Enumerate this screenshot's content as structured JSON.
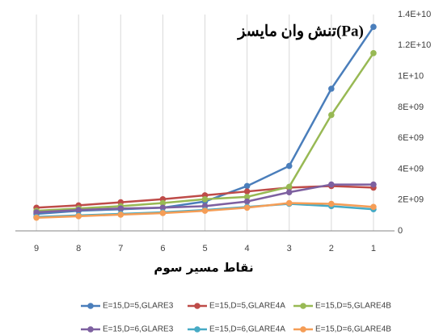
{
  "chart_data": {
    "type": "line",
    "title": "تنش وان مایسز(Pa)",
    "x_label": "نقاط مسیر سوم",
    "categories": [
      "9",
      "8",
      "7",
      "6",
      "5",
      "4",
      "3",
      "2",
      "1"
    ],
    "series": [
      {
        "name": "E=15,D=5,GLARE3",
        "color": "#4a7ebb",
        "values": [
          1100000000,
          1300000000,
          1400000000,
          1500000000,
          1900000000,
          2900000000,
          4200000000,
          9200000000,
          13200000000
        ]
      },
      {
        "name": "E=15,D=5,GLARE4A",
        "color": "#be4b48",
        "values": [
          1500000000,
          1650000000,
          1850000000,
          2050000000,
          2300000000,
          2550000000,
          2800000000,
          2900000000,
          2800000000
        ]
      },
      {
        "name": "E=15,D=5,GLARE4B",
        "color": "#98b954",
        "values": [
          1300000000,
          1450000000,
          1600000000,
          1800000000,
          2050000000,
          2200000000,
          2850000000,
          7500000000,
          11500000000
        ]
      },
      {
        "name": "E=15,D=6,GLARE3",
        "color": "#7d60a0",
        "values": [
          1200000000,
          1350000000,
          1450000000,
          1500000000,
          1600000000,
          1900000000,
          2500000000,
          3000000000,
          3000000000
        ]
      },
      {
        "name": "E=15,D=6,GLARE4A",
        "color": "#46aac5",
        "values": [
          900000000,
          1000000000,
          1100000000,
          1200000000,
          1350000000,
          1550000000,
          1750000000,
          1600000000,
          1400000000
        ]
      },
      {
        "name": "E=15,D=6,GLARE4B",
        "color": "#f59d56",
        "values": [
          850000000,
          950000000,
          1050000000,
          1150000000,
          1300000000,
          1500000000,
          1800000000,
          1750000000,
          1550000000
        ]
      }
    ],
    "ylim": [
      0,
      14000000000
    ],
    "yticks": [
      0,
      {
        "value": 2000000000,
        "label": "2E+09"
      },
      {
        "value": 4000000000,
        "label": "4E+09"
      },
      {
        "value": 6000000000,
        "label": "6E+09"
      },
      {
        "value": 8000000000,
        "label": "8E+09"
      },
      {
        "value": 10000000000,
        "label": "1E+10"
      },
      {
        "value": 12000000000,
        "label": "1.2E+10"
      },
      {
        "value": 14000000000,
        "label": "1.4E+10"
      }
    ],
    "y_axis_side": "right",
    "grid": "vertical",
    "legend": "bottom"
  }
}
